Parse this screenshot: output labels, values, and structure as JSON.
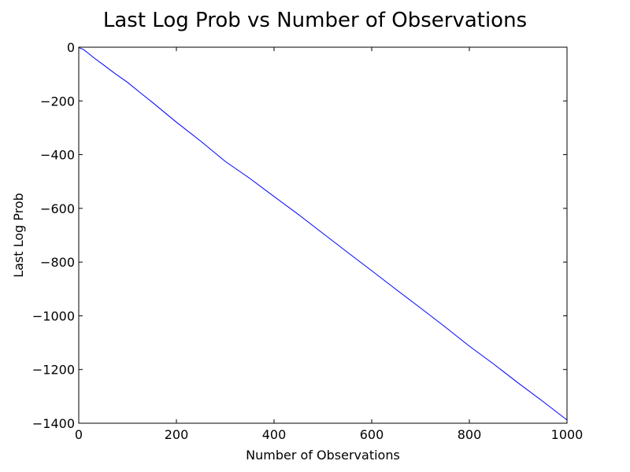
{
  "chart_data": {
    "type": "line",
    "title": "Last Log Prob vs Number of Observations",
    "xlabel": "Number of Observations",
    "ylabel": "Last Log Prob",
    "xlim": [
      0,
      1000
    ],
    "ylim": [
      -1400,
      0
    ],
    "x_ticks": [
      0,
      200,
      400,
      600,
      800,
      1000
    ],
    "y_ticks": [
      0,
      -200,
      -400,
      -600,
      -800,
      -1000,
      -1200,
      -1400
    ],
    "x_tick_labels": [
      "0",
      "200",
      "400",
      "600",
      "800",
      "1000"
    ],
    "y_tick_labels": [
      "0",
      "−200",
      "−400",
      "−600",
      "−800",
      "−1000",
      "−1200",
      "−1400"
    ],
    "grid": false,
    "line_color": "#0000ff",
    "series": [
      {
        "x": [
          1,
          5,
          10,
          20,
          30,
          50,
          75,
          100,
          125,
          150,
          200,
          250,
          300,
          350,
          400,
          450,
          500,
          550,
          600,
          650,
          700,
          750,
          800,
          850,
          900,
          950,
          1000
        ],
        "y": [
          -2,
          -5,
          -9,
          -23,
          -38,
          -65,
          -99,
          -131,
          -168,
          -204,
          -279,
          -350,
          -425,
          -488,
          -556,
          -623,
          -693,
          -763,
          -832,
          -902,
          -971,
          -1041,
          -1113,
          -1180,
          -1250,
          -1318,
          -1388
        ]
      }
    ]
  }
}
